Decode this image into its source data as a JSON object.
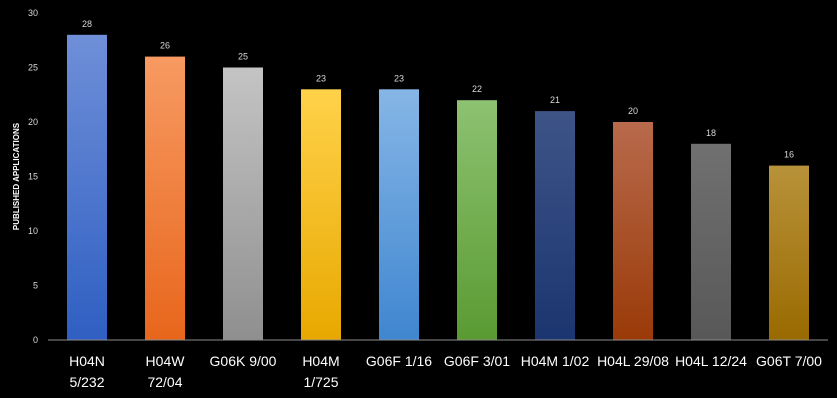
{
  "chart_data": {
    "type": "bar",
    "title": "",
    "xlabel": "",
    "ylabel": "PUBLISHED APPLICATIONS",
    "ylim": [
      0,
      30
    ],
    "yticks": [
      0,
      5,
      10,
      15,
      20,
      25,
      30
    ],
    "grid": false,
    "legend": "none",
    "categories": [
      [
        "H04N",
        "5/232"
      ],
      [
        "H04W",
        "72/04"
      ],
      [
        "G06K 9/00"
      ],
      [
        "H04M",
        "1/725"
      ],
      [
        "G06F 1/16"
      ],
      [
        "G06F 3/01"
      ],
      [
        "H04M 1/02"
      ],
      [
        "H04L 29/08"
      ],
      [
        "H04L 12/24"
      ],
      [
        "G06T 7/00"
      ]
    ],
    "values": [
      28,
      26,
      25,
      23,
      23,
      22,
      21,
      20,
      18,
      16
    ],
    "colors": [
      [
        "#6f8fd8",
        "#2f5fc2"
      ],
      [
        "#f79a62",
        "#e8661c"
      ],
      [
        "#c4c4c4",
        "#8f8f8f"
      ],
      [
        "#ffd24a",
        "#e8a800"
      ],
      [
        "#86b6e6",
        "#3f86d0"
      ],
      [
        "#8dc271",
        "#5a9a32"
      ],
      [
        "#3e5487",
        "#1b3570"
      ],
      [
        "#b86a4c",
        "#9a3a08"
      ],
      [
        "#707070",
        "#585858"
      ],
      [
        "#b8923a",
        "#996a00"
      ]
    ]
  }
}
